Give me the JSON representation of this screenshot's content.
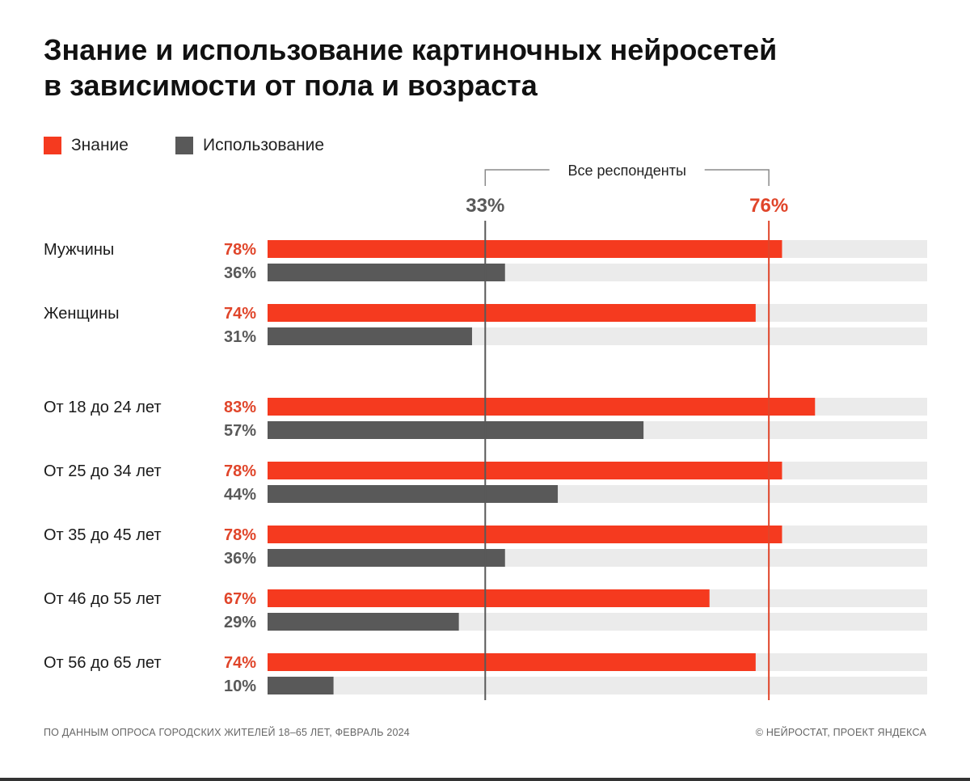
{
  "chart_data": {
    "type": "bar",
    "orientation": "horizontal",
    "title_lines": [
      "Знание и использование картиночных нейросетей",
      "в зависимости от пола и возраста"
    ],
    "legend": [
      {
        "name": "Знание",
        "color": "#f53a1f"
      },
      {
        "name": "Использование",
        "color": "#595959"
      }
    ],
    "xlim": [
      0,
      100
    ],
    "reference": {
      "label": "Все респонденты",
      "lines": [
        {
          "series": "Использование",
          "value": 33,
          "label": "33%",
          "color": "#595959"
        },
        {
          "series": "Знание",
          "value": 76,
          "label": "76%",
          "color": "#e0452a"
        }
      ]
    },
    "groups": [
      {
        "label": "Мужчины",
        "knowledge": 78,
        "knowledge_label": "78%",
        "usage": 36,
        "usage_label": "36%"
      },
      {
        "label": "Женщины",
        "knowledge": 74,
        "knowledge_label": "74%",
        "usage": 31,
        "usage_label": "31%"
      },
      {
        "label": "От 18 до 24 лет",
        "knowledge": 83,
        "knowledge_label": "83%",
        "usage": 57,
        "usage_label": "57%"
      },
      {
        "label": "От 25 до 34 лет",
        "knowledge": 78,
        "knowledge_label": "78%",
        "usage": 44,
        "usage_label": "44%"
      },
      {
        "label": "От 35 до 45 лет",
        "knowledge": 78,
        "knowledge_label": "78%",
        "usage": 36,
        "usage_label": "36%"
      },
      {
        "label": "От 46 до 55 лет",
        "knowledge": 67,
        "knowledge_label": "67%",
        "usage": 29,
        "usage_label": "29%"
      },
      {
        "label": "От 56 до 65 лет",
        "knowledge": 74,
        "knowledge_label": "74%",
        "usage": 10,
        "usage_label": "10%"
      }
    ]
  },
  "colors": {
    "knowledge": "#f53a1f",
    "usage": "#595959",
    "track": "#ebebeb",
    "knowledge_label": "#e0452a",
    "usage_label": "#595959"
  },
  "footer": {
    "source": "ПО ДАННЫМ ОПРОСА ГОРОДСКИХ ЖИТЕЛЕЙ 18–65 ЛЕТ, ФЕВРАЛЬ 2024",
    "credit": "© НЕЙРОСТАТ, ПРОЕКТ ЯНДЕКСА"
  }
}
